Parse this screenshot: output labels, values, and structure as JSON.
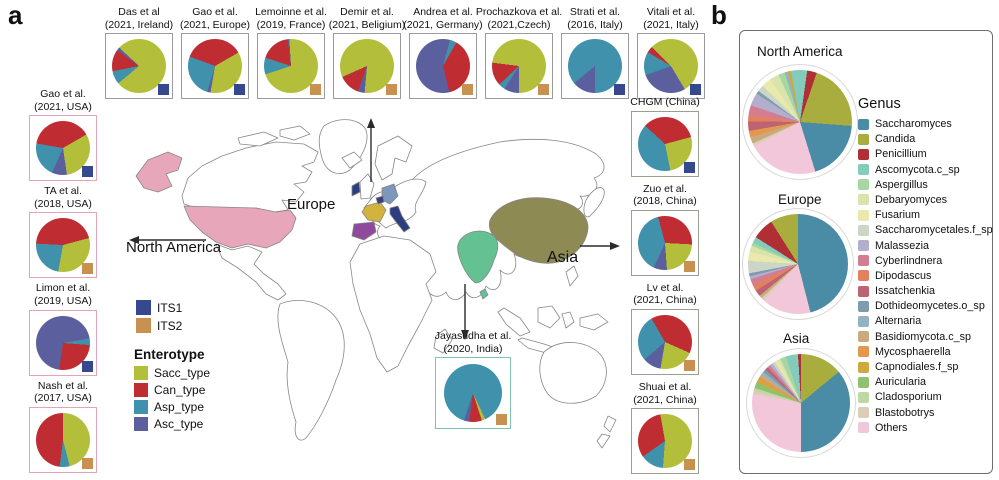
{
  "panel_a": {
    "label": "a",
    "map_labels": {
      "europe": "Europe",
      "north_america": "North America",
      "asia": "Asia"
    },
    "its_legend": {
      "items": [
        {
          "key": "ITS1",
          "label": "ITS1"
        },
        {
          "key": "ITS2",
          "label": "ITS2"
        }
      ]
    },
    "enterotype_legend": {
      "title": "Enterotype",
      "items": [
        {
          "key": "Sacc_type",
          "label": "Sacc_type"
        },
        {
          "key": "Can_type",
          "label": "Can_type"
        },
        {
          "key": "Asp_type",
          "label": "Asp_type"
        },
        {
          "key": "Asc_type",
          "label": "Asc_type"
        }
      ]
    },
    "map_colors": {
      "usa": "#e8a6ba",
      "china": "#8d8a54",
      "india": "#63c192",
      "france": "#d2b33e",
      "spain": "#8f4a9b",
      "germany": "#7b97b9",
      "italy": "#2c3e80",
      "ireland": "#2c3e80",
      "belgium": "#3a3f7a"
    },
    "card_borders": {
      "top": "#9a9aa0",
      "left": "#dfa6b9",
      "right": "#9aa08f",
      "india": "#7cc5a8"
    }
  },
  "panel_b": {
    "label": "b",
    "genus_legend": {
      "title": "Genus",
      "items": [
        {
          "key": "Saccharomyces",
          "label": "Saccharomyces"
        },
        {
          "key": "Candida",
          "label": "Candida"
        },
        {
          "key": "Penicillium",
          "label": "Penicillium"
        },
        {
          "key": "Ascomycota.c_sp",
          "label": "Ascomycota.c_sp"
        },
        {
          "key": "Aspergillus",
          "label": "Aspergillus"
        },
        {
          "key": "Debaryomyces",
          "label": "Debaryomyces"
        },
        {
          "key": "Fusarium",
          "label": "Fusarium"
        },
        {
          "key": "Saccharomycetales.f_sp",
          "label": "Saccharomycetales.f_sp"
        },
        {
          "key": "Malassezia",
          "label": "Malassezia"
        },
        {
          "key": "Cyberlindnera",
          "label": "Cyberlindnera"
        },
        {
          "key": "Dipodascus",
          "label": "Dipodascus"
        },
        {
          "key": "Issatchenkia",
          "label": "Issatchenkia"
        },
        {
          "key": "Dothideomycetes.o_sp",
          "label": "Dothideomycetes.o_sp"
        },
        {
          "key": "Alternaria",
          "label": "Alternaria"
        },
        {
          "key": "Basidiomycota.c_sp",
          "label": "Basidiomycota.c_sp"
        },
        {
          "key": "Mycosphaerella",
          "label": "Mycosphaerella"
        },
        {
          "key": "Capnodiales.f_sp",
          "label": "Capnodiales.f_sp"
        },
        {
          "key": "Auricularia",
          "label": "Auricularia"
        },
        {
          "key": "Cladosporium",
          "label": "Cladosporium"
        },
        {
          "key": "Blastobotrys",
          "label": "Blastobotrys"
        },
        {
          "key": "Others",
          "label": "Others"
        }
      ]
    }
  },
  "chart_data": {
    "type": "pie",
    "its_colors": {
      "ITS1": "#36488e",
      "ITS2": "#c8914f"
    },
    "enterotype_colors": {
      "Sacc_type": "#b3bf3a",
      "Can_type": "#bf2d33",
      "Asp_type": "#4092ac",
      "Asc_type": "#5b5f9d"
    },
    "genus_colors": {
      "Saccharomyces": "#4a8ba6",
      "Candida": "#a9ad3e",
      "Penicillium": "#b02f35",
      "Ascomycota.c_sp": "#83ccbb",
      "Aspergillus": "#a8d6a2",
      "Debaryomyces": "#d9e3ac",
      "Fusarium": "#e8e9ab",
      "Saccharomycetales.f_sp": "#cdd5c6",
      "Malassezia": "#b2aecb",
      "Cyberlindnera": "#d37d93",
      "Dipodascus": "#e3815e",
      "Issatchenkia": "#bd6372",
      "Dothideomycetes.o_sp": "#7e9cad",
      "Alternaria": "#92b3bf",
      "Basidiomycota.c_sp": "#c9aa7d",
      "Mycosphaerella": "#e3984e",
      "Capnodiales.f_sp": "#cfa83f",
      "Auricularia": "#90c16e",
      "Cladosporium": "#bed8a4",
      "Blastobotrys": "#decdb6",
      "Others": "#f3c7da"
    },
    "study_pies": [
      {
        "title": "Das et al",
        "subtitle": "(2021, Ireland)",
        "group": "top",
        "its": "ITS1",
        "from": 230,
        "slices": [
          [
            "Asp_type",
            8
          ],
          [
            "Can_type",
            13
          ],
          [
            "Asc_type",
            2
          ],
          [
            "Sacc_type",
            77
          ]
        ]
      },
      {
        "title": "Gao et al.",
        "subtitle": "(2021, Europe)",
        "group": "top",
        "its": "ITS1",
        "from": 60,
        "slices": [
          [
            "Sacc_type",
            36
          ],
          [
            "Asc_type",
            2
          ],
          [
            "Asp_type",
            26
          ],
          [
            "Can_type",
            36
          ]
        ]
      },
      {
        "title": "Lemoinne et al.",
        "subtitle": "(2019, France)",
        "group": "top",
        "its": "ITS2",
        "from": 252,
        "slices": [
          [
            "Asp_type",
            10
          ],
          [
            "Can_type",
            18
          ],
          [
            "Asc_type",
            1
          ],
          [
            "Sacc_type",
            71
          ]
        ]
      },
      {
        "title": "Demir et al.",
        "subtitle": "(2021, Beligium)",
        "group": "top",
        "its": "ITS2",
        "from": 185,
        "slices": [
          [
            "Asc_type",
            4
          ],
          [
            "Can_type",
            13
          ],
          [
            "Sacc_type",
            83
          ]
        ]
      },
      {
        "title": "Andrea et al.",
        "subtitle": "(2021, Germany)",
        "group": "top",
        "its": "ITS2",
        "from": 15,
        "slices": [
          [
            "Asp_type",
            4
          ],
          [
            "Can_type",
            38
          ],
          [
            "Asc_type",
            58
          ]
        ]
      },
      {
        "title": "Prochazkova et al.",
        "subtitle": "(2021,Czech)",
        "group": "top",
        "its": "ITS2",
        "from": 180,
        "slices": [
          [
            "Asc_type",
            9
          ],
          [
            "Asp_type",
            4
          ],
          [
            "Can_type",
            14
          ],
          [
            "Sacc_type",
            73
          ]
        ]
      },
      {
        "title": "Strati et al.",
        "subtitle": "(2016, Italy)",
        "group": "top",
        "its": "ITS1",
        "from": 180,
        "slices": [
          [
            "Asc_type",
            14
          ],
          [
            "Asp_type",
            86
          ]
        ]
      },
      {
        "title": "Vitali et al.",
        "subtitle": "(2021, Italy)",
        "group": "top",
        "its": "ITS1",
        "from": 315,
        "slices": [
          [
            "Sacc_type",
            54
          ],
          [
            "Asc_type",
            28
          ],
          [
            "Asp_type",
            14
          ],
          [
            "Can_type",
            4
          ]
        ]
      },
      {
        "title": "Gao et al.",
        "subtitle": "(2021, USA)",
        "group": "left",
        "its": "ITS1",
        "from": 60,
        "slices": [
          [
            "Sacc_type",
            31
          ],
          [
            "Asc_type",
            9
          ],
          [
            "Asp_type",
            21
          ],
          [
            "Can_type",
            39
          ]
        ]
      },
      {
        "title": "TA et al.",
        "subtitle": "(2018, USA)",
        "group": "left",
        "its": "ITS2",
        "from": 75,
        "slices": [
          [
            "Sacc_type",
            32
          ],
          [
            "Asp_type",
            23
          ],
          [
            "Can_type",
            45
          ]
        ]
      },
      {
        "title": "Limon et al.",
        "subtitle": "(2019, USA)",
        "group": "left",
        "its": "ITS1",
        "from": 80,
        "slices": [
          [
            "Asp_type",
            4
          ],
          [
            "Can_type",
            26
          ],
          [
            "Asc_type",
            70
          ]
        ]
      },
      {
        "title": "Nash et al.",
        "subtitle": "(2017, USA)",
        "group": "left",
        "its": "ITS2",
        "from": 0,
        "slices": [
          [
            "Sacc_type",
            46
          ],
          [
            "Asp_type",
            6
          ],
          [
            "Can_type",
            48
          ]
        ]
      },
      {
        "title": "CHGM (China)",
        "subtitle": "",
        "group": "right",
        "its": "ITS1",
        "from": 75,
        "slices": [
          [
            "Sacc_type",
            26
          ],
          [
            "Asp_type",
            40
          ],
          [
            "Can_type",
            34
          ]
        ]
      },
      {
        "title": "Zuo et al.",
        "subtitle": "(2018, China)",
        "group": "right",
        "its": "ITS2",
        "from": 345,
        "slices": [
          [
            "Can_type",
            30
          ],
          [
            "Sacc_type",
            23
          ],
          [
            "Asc_type",
            8
          ],
          [
            "Asp_type",
            39
          ]
        ]
      },
      {
        "title": "Lv et al.",
        "subtitle": "(2021, China)",
        "group": "right",
        "its": "ITS2",
        "from": 330,
        "slices": [
          [
            "Can_type",
            40
          ],
          [
            "Sacc_type",
            21
          ],
          [
            "Asc_type",
            11
          ],
          [
            "Asp_type",
            28
          ]
        ]
      },
      {
        "title": "Shuai et al.",
        "subtitle": "(2021, China)",
        "group": "right",
        "its": "ITS2",
        "from": 350,
        "slices": [
          [
            "Sacc_type",
            54
          ],
          [
            "Asp_type",
            14
          ],
          [
            "Can_type",
            32
          ]
        ]
      },
      {
        "title": "Jayasudha et al.",
        "subtitle": "(2020, India)",
        "group": "india",
        "its": "ITS2",
        "from": 155,
        "slices": [
          [
            "Sacc_type",
            2
          ],
          [
            "Can_type",
            7
          ],
          [
            "Asc_type",
            3
          ],
          [
            "Asp_type",
            88
          ]
        ]
      }
    ],
    "regional_pies": [
      {
        "title": "North America",
        "from": 350,
        "slices": [
          [
            "Ascomycota.c_sp",
            5
          ],
          [
            "Penicillium",
            3
          ],
          [
            "Candida",
            21
          ],
          [
            "Saccharomyces",
            19
          ],
          [
            "Others",
            22
          ],
          [
            "Blastobotrys",
            1
          ],
          [
            "Basidiomycota.c_sp",
            2
          ],
          [
            "Mycosphaerella",
            2
          ],
          [
            "Issatchenkia",
            3
          ],
          [
            "Dipodascus",
            2
          ],
          [
            "Cyberlindnera",
            3
          ],
          [
            "Malassezia",
            4
          ],
          [
            "Dothideomycetes.o_sp",
            1
          ],
          [
            "Saccharomycetales.f_sp",
            2
          ],
          [
            "Fusarium",
            3
          ],
          [
            "Debaryomyces",
            3
          ],
          [
            "Aspergillus",
            2
          ],
          [
            "Alternaria",
            1
          ],
          [
            "Capnodiales.f_sp",
            1
          ]
        ]
      },
      {
        "title": "Europe",
        "from": 0,
        "slices": [
          [
            "Saccharomyces",
            46
          ],
          [
            "Others",
            16
          ],
          [
            "Blastobotrys",
            1
          ],
          [
            "Basidiomycota.c_sp",
            1
          ],
          [
            "Issatchenkia",
            2
          ],
          [
            "Dipodascus",
            2
          ],
          [
            "Cyberlindnera",
            2
          ],
          [
            "Malassezia",
            1
          ],
          [
            "Dothideomycetes.o_sp",
            1
          ],
          [
            "Saccharomycetales.f_sp",
            4
          ],
          [
            "Fusarium",
            3
          ],
          [
            "Debaryomyces",
            2
          ],
          [
            "Aspergillus",
            1
          ],
          [
            "Ascomycota.c_sp",
            2
          ],
          [
            "Penicillium",
            7
          ],
          [
            "Candida",
            9
          ]
        ]
      },
      {
        "title": "Asia",
        "from": 0,
        "slices": [
          [
            "Candida",
            14
          ],
          [
            "Saccharomyces",
            36
          ],
          [
            "Others",
            28
          ],
          [
            "Blastobotrys",
            1
          ],
          [
            "Cladosporium",
            1
          ],
          [
            "Auricularia",
            2
          ],
          [
            "Capnodiales.f_sp",
            1
          ],
          [
            "Mycosphaerella",
            1
          ],
          [
            "Basidiomycota.c_sp",
            1
          ],
          [
            "Alternaria",
            1
          ],
          [
            "Dothideomycetes.o_sp",
            1
          ],
          [
            "Issatchenkia",
            1
          ],
          [
            "Cyberlindnera",
            1
          ],
          [
            "Malassezia",
            1
          ],
          [
            "Saccharomycetales.f_sp",
            1
          ],
          [
            "Fusarium",
            1
          ],
          [
            "Debaryomyces",
            1
          ],
          [
            "Aspergillus",
            2
          ],
          [
            "Ascomycota.c_sp",
            4
          ],
          [
            "Penicillium",
            1
          ]
        ]
      }
    ]
  }
}
